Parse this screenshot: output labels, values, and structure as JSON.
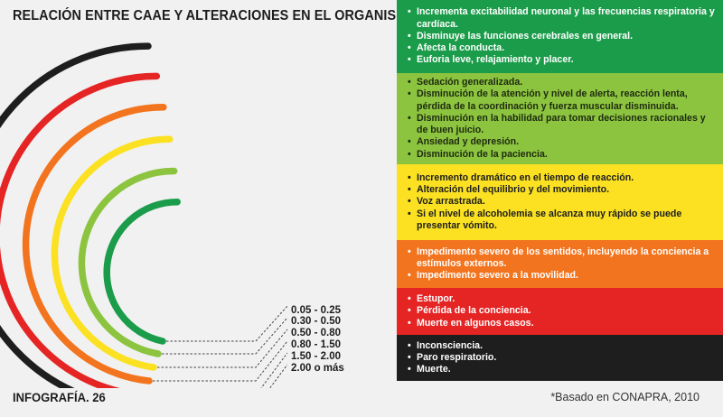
{
  "title": "RELACIÓN ENTRE CAAE Y ALTERACIONES EN EL ORGANISMO",
  "footer": {
    "label": "INFOGRAFÍA. 26",
    "source": "*Basado en CONAPRA, 2010"
  },
  "levels": [
    {
      "range": "0.05 - 0.25",
      "color": "#1b9c4a",
      "effects": [
        "Incrementa excitabilidad neuronal y las frecuencias respiratoria y cardíaca.",
        "Disminuye las funciones cerebrales en general.",
        "Afecta la conducta.",
        "Euforia leve, relajamiento y placer."
      ]
    },
    {
      "range": "0.30 - 0.50",
      "color": "#8cc43f",
      "effects": [
        "Sedación generalizada.",
        "Disminución de la atención y nivel de alerta, reacción lenta, pérdida de la coordinación y fuerza muscular disminuida.",
        "Disminución en la habilidad para tomar decisiones racionales y de buen juicio.",
        "Ansiedad y depresión.",
        "Disminución de la paciencia."
      ]
    },
    {
      "range": "0.50 - 0.80",
      "color": "#fbe122",
      "effects": [
        "Incremento dramático en el tiempo de reacción.",
        "Alteración del equilibrio y del movimiento.",
        "Voz arrastrada.",
        "Si el nivel de alcoholemia se alcanza muy rápido se puede presentar vómito."
      ]
    },
    {
      "range": "0.80 - 1.50",
      "color": "#f3741e",
      "effects": [
        "Impedimento severo de los sentidos, incluyendo la conciencia a estímulos externos.",
        "Impedimento severo a la movilidad."
      ]
    },
    {
      "range": "1.50 - 2.00",
      "color": "#e52424",
      "effects": [
        "Estupor.",
        "Pérdida de la conciencia.",
        "Muerte en algunos casos."
      ]
    },
    {
      "range": "2.00 o más",
      "color": "#1e1e1e",
      "effects": [
        "Inconsciencia.",
        "Paro respiratorio.",
        "Muerte."
      ]
    }
  ]
}
